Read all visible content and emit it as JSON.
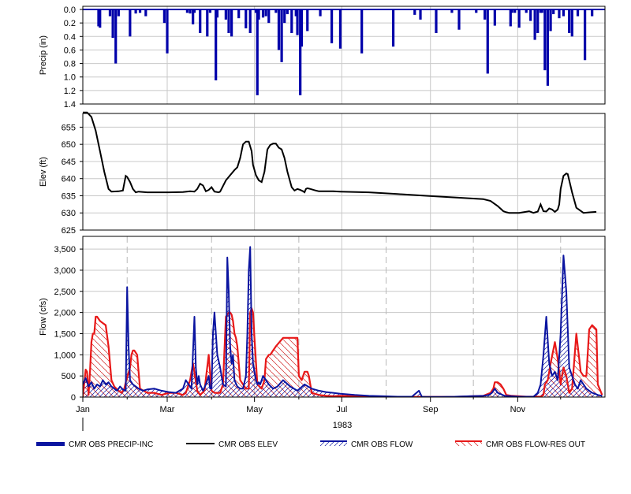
{
  "colors": {
    "precip": "#0000aa",
    "elev": "#000000",
    "obs_flow": "#0a14a0",
    "res_out": "#e81818",
    "grid": "#c8c8c8",
    "month_guide": "#b8b8b8"
  },
  "chart_data": [
    {
      "type": "bar",
      "id": "precip",
      "ylabel": "Precip (in)",
      "ylim": [
        0,
        1.4
      ],
      "inverted": true,
      "yticks": [
        0.0,
        0.2,
        0.4,
        0.6,
        0.8,
        1.0,
        1.2,
        1.4
      ],
      "ytick_labels": [
        "0.0",
        "0.2",
        "0.4",
        "0.6",
        "0.8",
        "1.0",
        "1.2",
        "1.4"
      ],
      "x_unit": "day of 1983",
      "series": [
        {
          "name": "CMR OBS PRECIP-INC",
          "days": [
            11,
            12,
            19,
            21,
            23,
            25,
            33,
            37,
            40,
            44,
            57,
            59,
            73,
            75,
            77,
            78,
            82,
            87,
            89,
            93,
            94,
            100,
            102,
            104,
            109,
            114,
            117,
            121,
            122,
            123,
            126,
            128,
            130,
            135,
            137,
            139,
            141,
            143,
            146,
            149,
            150,
            152,
            153,
            157,
            166,
            174,
            180,
            195,
            217,
            232,
            236,
            247,
            258,
            263,
            275,
            281,
            283,
            288,
            299,
            300,
            302,
            305,
            310,
            313,
            316,
            318,
            320,
            321,
            323,
            325,
            327,
            329,
            333,
            336,
            340,
            342,
            346,
            351,
            356
          ],
          "values": [
            0.25,
            0.27,
            0.1,
            0.42,
            0.8,
            0.1,
            0.4,
            0.06,
            0.05,
            0.1,
            0.2,
            0.65,
            0.05,
            0.06,
            0.22,
            0.05,
            0.35,
            0.4,
            0.05,
            1.05,
            0.12,
            0.15,
            0.35,
            0.4,
            0.13,
            0.28,
            0.35,
            0.05,
            1.27,
            0.15,
            0.12,
            0.1,
            0.2,
            0.05,
            0.6,
            0.78,
            0.2,
            0.07,
            0.35,
            0.1,
            0.38,
            1.27,
            0.55,
            0.32,
            0.1,
            0.5,
            0.58,
            0.65,
            0.55,
            0.08,
            0.15,
            0.35,
            0.05,
            0.3,
            0.05,
            0.15,
            0.95,
            0.24,
            0.25,
            0.05,
            0.05,
            0.27,
            0.05,
            0.17,
            0.45,
            0.35,
            0.05,
            0.05,
            0.9,
            1.13,
            0.32,
            0.07,
            0.13,
            0.1,
            0.35,
            0.4,
            0.1,
            0.75,
            0.1
          ]
        }
      ]
    },
    {
      "type": "line",
      "id": "elev",
      "ylabel": "Elev (ft)",
      "ylim": [
        625,
        659
      ],
      "yticks": [
        625,
        630,
        635,
        640,
        645,
        650,
        655
      ],
      "ytick_labels": [
        "625",
        "630",
        "635",
        "640",
        "645",
        "650",
        "655"
      ],
      "series": [
        {
          "name": "CMR OBS ELEV",
          "x": [
            0,
            3,
            6,
            9,
            12,
            15,
            18,
            20,
            25,
            28,
            30,
            31,
            33,
            35,
            37,
            39,
            45,
            60,
            70,
            75,
            78,
            80,
            82,
            84,
            86,
            88,
            90,
            92,
            95,
            96,
            100,
            103,
            106,
            108,
            110,
            112,
            114,
            116,
            118,
            119,
            121,
            123,
            125,
            127,
            129,
            131,
            133,
            135,
            137,
            139,
            141,
            143,
            146,
            148,
            150,
            152,
            154,
            155,
            156,
            157,
            159,
            163,
            165,
            170,
            175,
            180,
            200,
            220,
            240,
            260,
            280,
            285,
            290,
            294,
            296,
            298,
            301,
            305,
            312,
            315,
            318,
            320,
            322,
            324,
            326,
            328,
            330,
            332,
            333,
            334,
            336,
            338,
            339,
            340,
            342,
            345,
            350,
            355,
            359
          ],
          "y": [
            659.3,
            659.3,
            658,
            654,
            648,
            642,
            637,
            636.2,
            636.3,
            636.5,
            640.8,
            640.5,
            639,
            637,
            636,
            636.2,
            636,
            636,
            636.1,
            636.3,
            636.2,
            637,
            638.5,
            638,
            636.3,
            636.7,
            637.5,
            636.2,
            636,
            636.2,
            639.5,
            641,
            642.5,
            643.3,
            646,
            650,
            650.8,
            650.8,
            648,
            644,
            641,
            639.5,
            639,
            642,
            648.5,
            649.8,
            650.2,
            650.2,
            649,
            648.5,
            646,
            642,
            637.5,
            636.5,
            637,
            636.7,
            636.3,
            636,
            637,
            637.2,
            637,
            636.5,
            636.3,
            636.3,
            636.3,
            636.2,
            636,
            635.5,
            635,
            634.5,
            634,
            633.5,
            632,
            630.5,
            630.2,
            630,
            630,
            630,
            630.5,
            630,
            630.4,
            632.5,
            630.5,
            630.4,
            631.3,
            631,
            630.3,
            631,
            632.5,
            637,
            640.8,
            641.5,
            641.3,
            639.5,
            636,
            631.5,
            630,
            630.2,
            630.3
          ]
        }
      ]
    },
    {
      "type": "area",
      "id": "flow",
      "ylabel": "Flow (cfs)",
      "ylim": [
        0,
        3800
      ],
      "yticks": [
        0,
        500,
        1000,
        1500,
        2000,
        2500,
        3000,
        3500
      ],
      "ytick_labels": [
        "0",
        "500",
        "1,000",
        "1,500",
        "2,000",
        "2,500",
        "3,000",
        "3,500"
      ],
      "xticks": [
        0,
        59,
        120,
        181,
        243,
        304
      ],
      "xtick_labels": [
        "Jan",
        "Mar",
        "May",
        "Jul",
        "Sep",
        "Nov"
      ],
      "xlabel": "1983",
      "month_guides": [
        31,
        90,
        151,
        212,
        273,
        334
      ],
      "series": [
        {
          "name": "CMR OBS FLOW",
          "x": [
            0,
            2,
            4,
            6,
            8,
            10,
            12,
            14,
            16,
            18,
            20,
            22,
            24,
            26,
            28,
            30,
            31,
            32,
            33,
            35,
            37,
            39,
            42,
            45,
            50,
            55,
            60,
            65,
            70,
            72,
            74,
            76,
            78,
            79,
            80,
            81,
            82,
            84,
            86,
            88,
            89,
            90,
            91,
            92,
            94,
            96,
            98,
            100,
            101,
            102,
            103,
            104,
            105,
            106,
            108,
            110,
            112,
            114,
            115,
            116,
            117,
            118,
            119,
            120,
            121,
            122,
            123,
            124,
            126,
            128,
            130,
            133,
            136,
            140,
            145,
            150,
            155,
            160,
            165,
            170,
            175,
            180,
            190,
            200,
            210,
            220,
            230,
            235,
            237,
            240,
            250,
            260,
            270,
            280,
            284,
            286,
            288,
            290,
            295,
            300,
            305,
            310,
            315,
            318,
            320,
            322,
            324,
            326,
            328,
            330,
            332,
            334,
            336,
            338,
            340,
            342,
            344,
            346,
            348,
            350,
            352,
            354,
            356,
            358,
            360,
            363
          ],
          "y": [
            300,
            450,
            250,
            350,
            200,
            300,
            250,
            400,
            300,
            350,
            250,
            200,
            150,
            250,
            180,
            150,
            2600,
            1200,
            400,
            300,
            250,
            200,
            150,
            180,
            200,
            150,
            120,
            100,
            200,
            400,
            300,
            200,
            1900,
            700,
            300,
            500,
            300,
            150,
            300,
            500,
            200,
            200,
            1500,
            2000,
            1000,
            700,
            300,
            250,
            3300,
            2500,
            1200,
            800,
            1000,
            400,
            250,
            200,
            200,
            500,
            1500,
            3000,
            3550,
            1500,
            800,
            600,
            400,
            300,
            350,
            300,
            500,
            400,
            300,
            200,
            250,
            400,
            250,
            150,
            300,
            200,
            150,
            120,
            100,
            80,
            50,
            30,
            20,
            10,
            10,
            150,
            10,
            5,
            5,
            10,
            20,
            30,
            50,
            100,
            200,
            100,
            30,
            20,
            10,
            10,
            10,
            100,
            300,
            1000,
            1900,
            800,
            500,
            600,
            400,
            1500,
            3350,
            2500,
            700,
            500,
            300,
            200,
            400,
            300,
            200,
            150,
            100,
            80,
            50,
            30
          ]
        },
        {
          "name": "CMR OBS FLOW-RES OUT",
          "x": [
            0,
            2,
            3,
            4,
            5,
            6,
            7,
            8,
            9,
            10,
            12,
            14,
            16,
            18,
            20,
            22,
            25,
            27,
            29,
            30,
            33,
            34,
            35,
            36,
            38,
            40,
            45,
            50,
            55,
            60,
            65,
            70,
            72,
            75,
            77,
            80,
            82,
            85,
            88,
            90,
            92,
            94,
            96,
            98,
            100,
            102,
            103,
            104,
            105,
            106,
            107,
            108,
            110,
            112,
            114,
            116,
            117,
            118,
            119,
            120,
            122,
            125,
            127,
            128,
            130,
            131,
            133,
            135,
            140,
            142,
            145,
            150,
            151,
            153,
            155,
            157,
            158,
            160,
            165,
            170,
            175,
            180,
            200,
            220,
            240,
            260,
            280,
            285,
            287,
            288,
            290,
            292,
            294,
            296,
            300,
            310,
            320,
            322,
            323,
            325,
            327,
            330,
            332,
            334,
            336,
            338,
            340,
            342,
            345,
            348,
            350,
            352,
            354,
            356,
            359,
            360,
            363
          ],
          "y": [
            0,
            650,
            600,
            50,
            600,
            1300,
            1500,
            1500,
            1900,
            1900,
            1800,
            1750,
            1700,
            1200,
            400,
            250,
            150,
            100,
            200,
            350,
            700,
            1000,
            1100,
            1100,
            1000,
            200,
            100,
            100,
            50,
            100,
            100,
            50,
            100,
            400,
            800,
            150,
            50,
            150,
            1000,
            150,
            100,
            100,
            100,
            300,
            1900,
            2000,
            2000,
            1950,
            1800,
            1500,
            1400,
            1200,
            400,
            300,
            200,
            200,
            2000,
            2100,
            2000,
            1400,
            300,
            200,
            400,
            900,
            1000,
            1000,
            1100,
            1200,
            1400,
            1400,
            1400,
            1400,
            500,
            400,
            600,
            600,
            500,
            100,
            50,
            30,
            20,
            30,
            10,
            5,
            5,
            5,
            30,
            100,
            200,
            350,
            350,
            300,
            200,
            50,
            30,
            10,
            10,
            50,
            300,
            400,
            800,
            1300,
            900,
            300,
            700,
            500,
            100,
            200,
            1500,
            600,
            500,
            500,
            1600,
            1700,
            1600,
            300,
            50
          ]
        }
      ]
    }
  ],
  "legend": [
    {
      "label": "CMR OBS PRECIP-INC",
      "style": "thick-blue-line"
    },
    {
      "label": "CMR OBS ELEV",
      "style": "black-line"
    },
    {
      "label": "CMR OBS FLOW",
      "style": "blue-hatched"
    },
    {
      "label": "CMR OBS FLOW-RES OUT",
      "style": "red-hatched"
    }
  ]
}
